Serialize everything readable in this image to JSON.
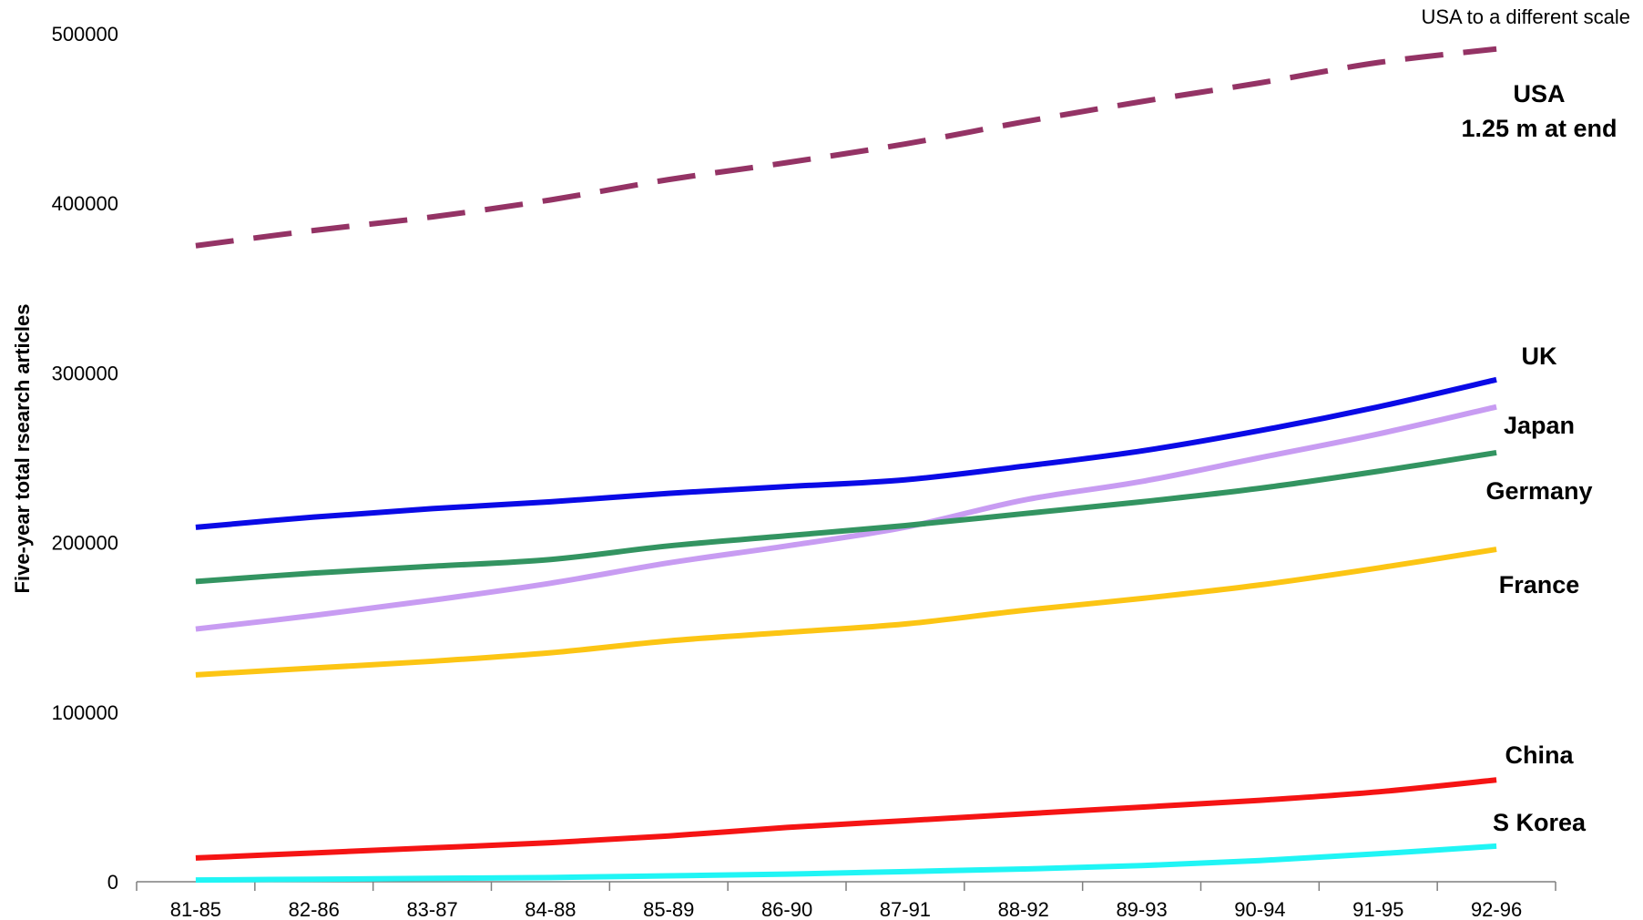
{
  "chart_data": {
    "type": "line",
    "title": "",
    "xlabel": "",
    "ylabel": "Five-year total rsearch articles",
    "ylim": [
      0,
      500000
    ],
    "yticks": [
      0,
      100000,
      200000,
      300000,
      400000,
      500000
    ],
    "ytick_labels": [
      "0",
      "100000",
      "200000",
      "300000",
      "400000",
      "500000"
    ],
    "grid": false,
    "legend": "none",
    "categories": [
      "81-85",
      "82-86",
      "83-87",
      "84-88",
      "85-89",
      "86-90",
      "87-91",
      "88-92",
      "89-93",
      "90-94",
      "91-95",
      "92-96"
    ],
    "annotation": "USA to a different scale",
    "series": [
      {
        "name": "USA",
        "label_lines": [
          "USA",
          "1.25 m at end"
        ],
        "color": "#943365",
        "dashed": true,
        "values": [
          375000,
          384000,
          392000,
          402000,
          414000,
          424000,
          435000,
          448000,
          460000,
          471000,
          483000,
          491000
        ]
      },
      {
        "name": "UK",
        "label_lines": [
          "UK"
        ],
        "color": "#0a0ae6",
        "dashed": false,
        "values": [
          209000,
          215000,
          220000,
          224000,
          229000,
          233000,
          237000,
          245000,
          254000,
          266000,
          280000,
          296000
        ]
      },
      {
        "name": "Japan",
        "label_lines": [
          "Japan"
        ],
        "color": "#c89cf2",
        "dashed": false,
        "values": [
          149000,
          157000,
          166000,
          176000,
          188000,
          198000,
          209000,
          225000,
          236000,
          250000,
          264000,
          280000
        ]
      },
      {
        "name": "Germany",
        "label_lines": [
          "Germany"
        ],
        "color": "#339461",
        "dashed": false,
        "values": [
          177000,
          182000,
          186000,
          190000,
          198000,
          204000,
          210000,
          217000,
          224000,
          232000,
          242000,
          253000
        ]
      },
      {
        "name": "France",
        "label_lines": [
          "France"
        ],
        "color": "#fcc514",
        "dashed": false,
        "values": [
          122000,
          126000,
          130000,
          135000,
          142000,
          147000,
          152000,
          160000,
          167000,
          175000,
          185000,
          196000
        ]
      },
      {
        "name": "China",
        "label_lines": [
          "China"
        ],
        "color": "#f51414",
        "dashed": false,
        "values": [
          14000,
          17000,
          20000,
          23000,
          27000,
          32000,
          36000,
          40000,
          44000,
          48000,
          53000,
          60000
        ]
      },
      {
        "name": "S Korea",
        "label_lines": [
          "S Korea"
        ],
        "color": "#20f5f5",
        "dashed": false,
        "values": [
          1000,
          1500,
          2000,
          2500,
          3500,
          4500,
          6000,
          7500,
          9500,
          12500,
          16500,
          21000
        ]
      }
    ]
  }
}
